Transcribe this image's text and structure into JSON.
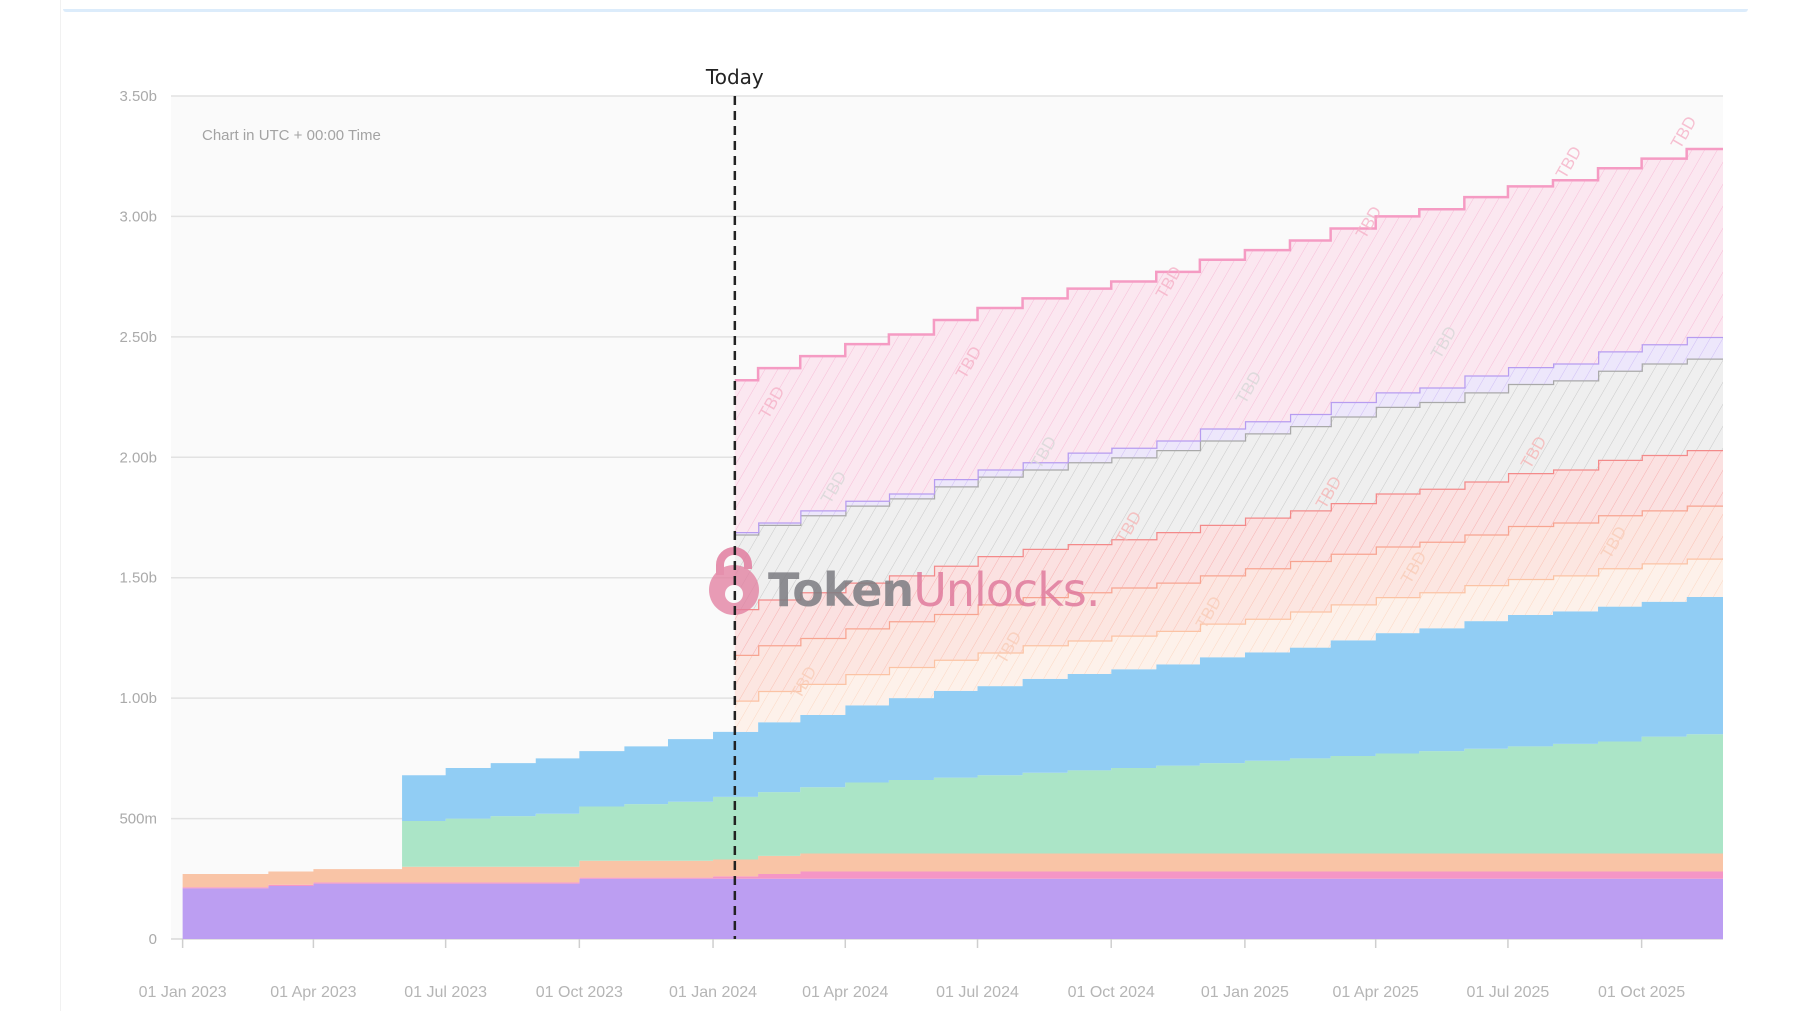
{
  "chart_data": {
    "type": "area",
    "stacked": true,
    "step": "monthly",
    "title": "",
    "xlabel": "",
    "ylabel": "",
    "note": "Chart in UTC + 00:00 Time",
    "watermark": {
      "part1": "Token",
      "part2": "Unlocks."
    },
    "today": {
      "label": "Today",
      "date": "2024-01-16"
    },
    "tbd_label": "TBD",
    "xlim": [
      "2022-12-24",
      "2025-11-26"
    ],
    "ylim": [
      0,
      3500000000
    ],
    "grid": true,
    "legend": "none",
    "y_ticks": [
      {
        "value": 0,
        "label": "0"
      },
      {
        "value": 500000000,
        "label": "500m"
      },
      {
        "value": 1000000000,
        "label": "1.00b"
      },
      {
        "value": 1500000000,
        "label": "1.50b"
      },
      {
        "value": 2000000000,
        "label": "2.00b"
      },
      {
        "value": 2500000000,
        "label": "2.50b"
      },
      {
        "value": 3000000000,
        "label": "3.00b"
      },
      {
        "value": 3500000000,
        "label": "3.50b"
      }
    ],
    "x_ticks": [
      {
        "date": "2023-01-01",
        "label": "01 Jan 2023"
      },
      {
        "date": "2023-04-01",
        "label": "01 Apr 2023"
      },
      {
        "date": "2023-07-01",
        "label": "01 Jul 2023"
      },
      {
        "date": "2023-10-01",
        "label": "01 Oct 2023"
      },
      {
        "date": "2024-01-01",
        "label": "01 Jan 2024"
      },
      {
        "date": "2024-04-01",
        "label": "01 Apr 2024"
      },
      {
        "date": "2024-07-01",
        "label": "01 Jul 2024"
      },
      {
        "date": "2024-10-01",
        "label": "01 Oct 2024"
      },
      {
        "date": "2025-01-01",
        "label": "01 Jan 2025"
      },
      {
        "date": "2025-04-01",
        "label": "01 Apr 2025"
      },
      {
        "date": "2025-07-01",
        "label": "01 Jul 2025"
      },
      {
        "date": "2025-10-01",
        "label": "01 Oct 2025"
      }
    ],
    "value_unit": "billion tokens per month-step (stack increment)",
    "months_start": "2023-01",
    "series": [
      {
        "color": "#bc9ef2",
        "tbd": false,
        "start_month": "2023-01",
        "values": [
          0.21,
          0.21,
          0.22,
          0.23,
          0.23,
          0.23,
          0.23,
          0.23,
          0.23,
          0.25,
          0.25,
          0.25,
          0.25,
          0.25,
          0.25,
          0.25,
          0.25,
          0.25,
          0.25,
          0.25,
          0.25,
          0.25,
          0.25,
          0.25,
          0.25,
          0.25,
          0.25,
          0.25,
          0.25,
          0.25,
          0.25,
          0.25,
          0.25,
          0.25,
          0.25
        ]
      },
      {
        "color": "#f596c6",
        "tbd": false,
        "start_month": "2023-01",
        "values": [
          0.005,
          0.005,
          0.005,
          0.005,
          0.005,
          0.005,
          0.005,
          0.005,
          0.005,
          0.005,
          0.005,
          0.005,
          0.01,
          0.02,
          0.03,
          0.03,
          0.03,
          0.03,
          0.03,
          0.03,
          0.03,
          0.03,
          0.03,
          0.03,
          0.03,
          0.03,
          0.03,
          0.03,
          0.03,
          0.03,
          0.03,
          0.03,
          0.03,
          0.03,
          0.03
        ]
      },
      {
        "color": "#f9c4a6",
        "tbd": false,
        "start_month": "2023-01",
        "values": [
          0.055,
          0.055,
          0.055,
          0.055,
          0.055,
          0.065,
          0.065,
          0.065,
          0.065,
          0.07,
          0.07,
          0.07,
          0.07,
          0.075,
          0.075,
          0.075,
          0.075,
          0.075,
          0.075,
          0.075,
          0.075,
          0.075,
          0.075,
          0.075,
          0.075,
          0.075,
          0.075,
          0.075,
          0.075,
          0.075,
          0.075,
          0.075,
          0.075,
          0.075,
          0.075
        ]
      },
      {
        "color": "#abe5c7",
        "tbd": false,
        "start_month": "2023-06",
        "values": [
          0.19,
          0.2,
          0.21,
          0.22,
          0.225,
          0.235,
          0.245,
          0.26,
          0.265,
          0.275,
          0.295,
          0.305,
          0.315,
          0.325,
          0.335,
          0.345,
          0.355,
          0.365,
          0.375,
          0.385,
          0.395,
          0.405,
          0.415,
          0.425,
          0.435,
          0.445,
          0.455,
          0.465,
          0.485,
          0.495
        ]
      },
      {
        "color": "#91cdf4",
        "tbd": false,
        "start_month": "2023-06",
        "values": [
          0.19,
          0.21,
          0.22,
          0.23,
          0.23,
          0.24,
          0.26,
          0.27,
          0.29,
          0.3,
          0.32,
          0.34,
          0.36,
          0.37,
          0.39,
          0.4,
          0.41,
          0.42,
          0.44,
          0.45,
          0.46,
          0.48,
          0.5,
          0.51,
          0.53,
          0.545,
          0.55,
          0.56,
          0.56,
          0.57
        ]
      },
      {
        "color": "#fbc3a4",
        "fill": "#fdf1ea",
        "tbd": true,
        "start_month": "2024-01",
        "values": [
          0.13,
          0.13,
          0.13,
          0.13,
          0.13,
          0.13,
          0.14,
          0.14,
          0.14,
          0.14,
          0.14,
          0.14,
          0.14,
          0.15,
          0.15,
          0.15,
          0.15,
          0.15,
          0.15,
          0.15,
          0.16,
          0.16,
          0.16
        ]
      },
      {
        "color": "#f7a491",
        "fill": "#fce6e1",
        "tbd": true,
        "start_month": "2024-01",
        "values": [
          0.19,
          0.19,
          0.19,
          0.19,
          0.19,
          0.19,
          0.2,
          0.2,
          0.2,
          0.2,
          0.2,
          0.2,
          0.21,
          0.21,
          0.21,
          0.21,
          0.21,
          0.21,
          0.22,
          0.22,
          0.22,
          0.22,
          0.22
        ]
      },
      {
        "color": "#f38a8a",
        "fill": "#fbe1e1",
        "tbd": true,
        "start_month": "2024-01",
        "values": [
          0.19,
          0.19,
          0.19,
          0.19,
          0.19,
          0.2,
          0.2,
          0.2,
          0.2,
          0.2,
          0.21,
          0.21,
          0.21,
          0.21,
          0.21,
          0.22,
          0.22,
          0.22,
          0.22,
          0.22,
          0.23,
          0.23,
          0.23
        ]
      },
      {
        "color": "#a9a9a9",
        "fill": "#efefef",
        "tbd": true,
        "start_month": "2024-01",
        "values": [
          0.31,
          0.31,
          0.32,
          0.32,
          0.32,
          0.33,
          0.33,
          0.33,
          0.34,
          0.34,
          0.34,
          0.35,
          0.35,
          0.35,
          0.36,
          0.36,
          0.36,
          0.37,
          0.37,
          0.37,
          0.37,
          0.38,
          0.38
        ]
      },
      {
        "color": "#b79cf0",
        "fill": "#ede7fb",
        "tbd": true,
        "start_month": "2024-01",
        "values": [
          0.01,
          0.01,
          0.02,
          0.02,
          0.02,
          0.03,
          0.03,
          0.03,
          0.04,
          0.04,
          0.04,
          0.05,
          0.05,
          0.05,
          0.06,
          0.06,
          0.06,
          0.07,
          0.07,
          0.07,
          0.08,
          0.08,
          0.09
        ]
      },
      {
        "color": "#f59bc3",
        "fill": "#fbe7f0",
        "tbd": true,
        "start_month": "2024-01",
        "values": [
          0.63,
          0.64,
          0.64,
          0.65,
          0.66,
          0.66,
          0.67,
          0.68,
          0.68,
          0.69,
          0.7,
          0.7,
          0.71,
          0.72,
          0.72,
          0.73,
          0.74,
          0.74,
          0.75,
          0.76,
          0.76,
          0.77,
          0.78
        ]
      }
    ]
  }
}
